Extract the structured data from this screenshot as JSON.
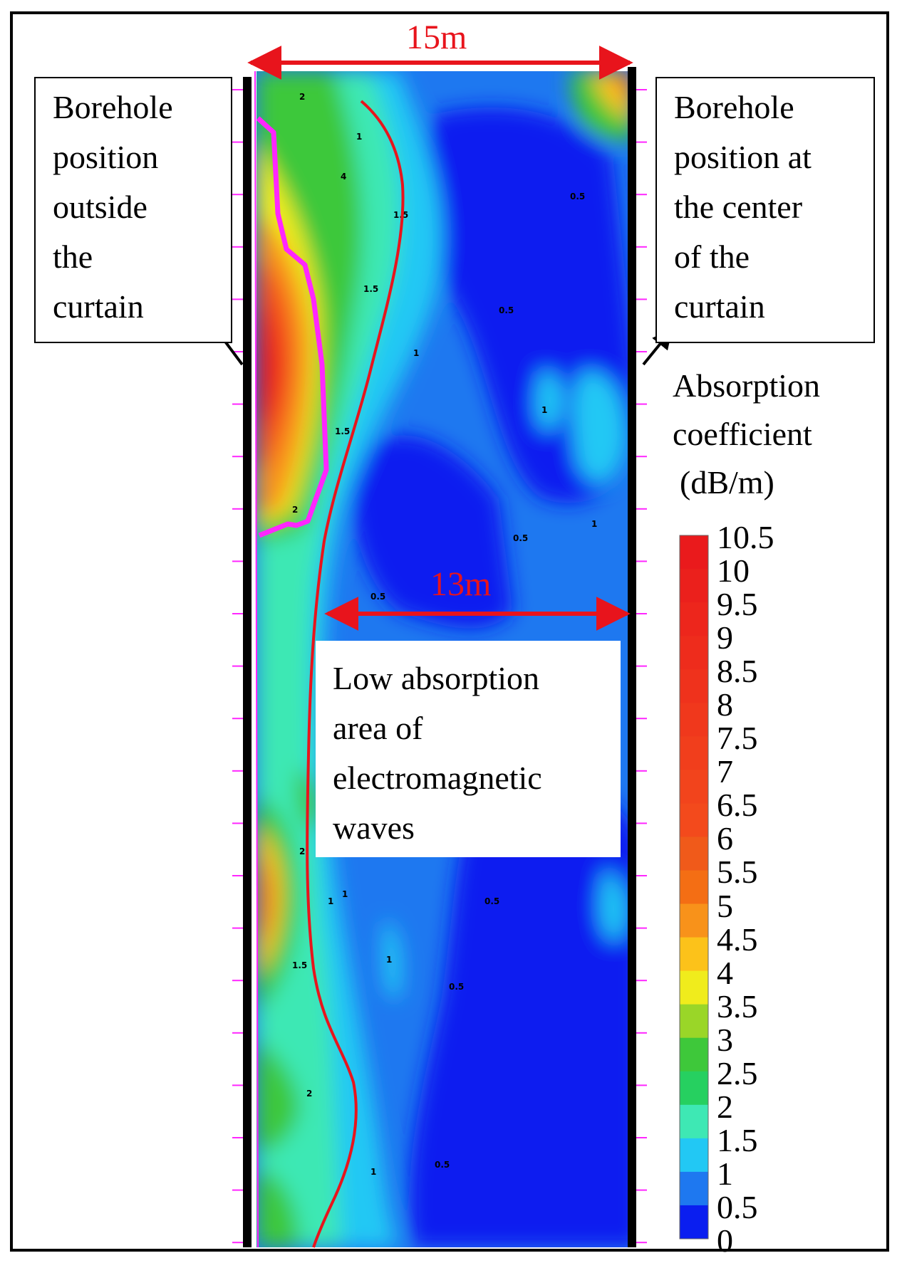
{
  "dimensions": {
    "total_width": "15m",
    "low_zone_width": "13m"
  },
  "callouts": {
    "left": [
      "Borehole",
      "position",
      "outside",
      "the",
      "curtain"
    ],
    "right": [
      "Borehole",
      "position at",
      "the center",
      "of the",
      "curtain"
    ],
    "low_area": [
      "Low absorption",
      "area of",
      "electromagnetic",
      "waves"
    ]
  },
  "legend": {
    "title": [
      "Absorption",
      "coefficient",
      "(dB/m)"
    ],
    "levels": [
      "10.5",
      "10",
      "9.5",
      "9",
      "8.5",
      "8",
      "7.5",
      "7",
      "6.5",
      "6",
      "5.5",
      "5",
      "4.5",
      "4",
      "3.5",
      "3",
      "2.5",
      "2",
      "1.5",
      "1",
      "0.5",
      "0"
    ],
    "colors": [
      "#e8141c",
      "#ea1a1c",
      "#eb201c",
      "#ed261c",
      "#ee2c1c",
      "#ef321c",
      "#f0381c",
      "#f13e1c",
      "#f2441c",
      "#f34a1c",
      "#f05a1a",
      "#f46e14",
      "#f8921a",
      "#fcc21a",
      "#f0ec1c",
      "#9ad628",
      "#3ec83a",
      "#26d060",
      "#3ee8b4",
      "#22c8f4",
      "#1e78f0",
      "#0a1ef0"
    ]
  },
  "colors": {
    "dimension": "#e8141c",
    "boundary_curve": "#e8141c",
    "anomaly_outline": "#ff26ff",
    "borehole": "#000000"
  }
}
